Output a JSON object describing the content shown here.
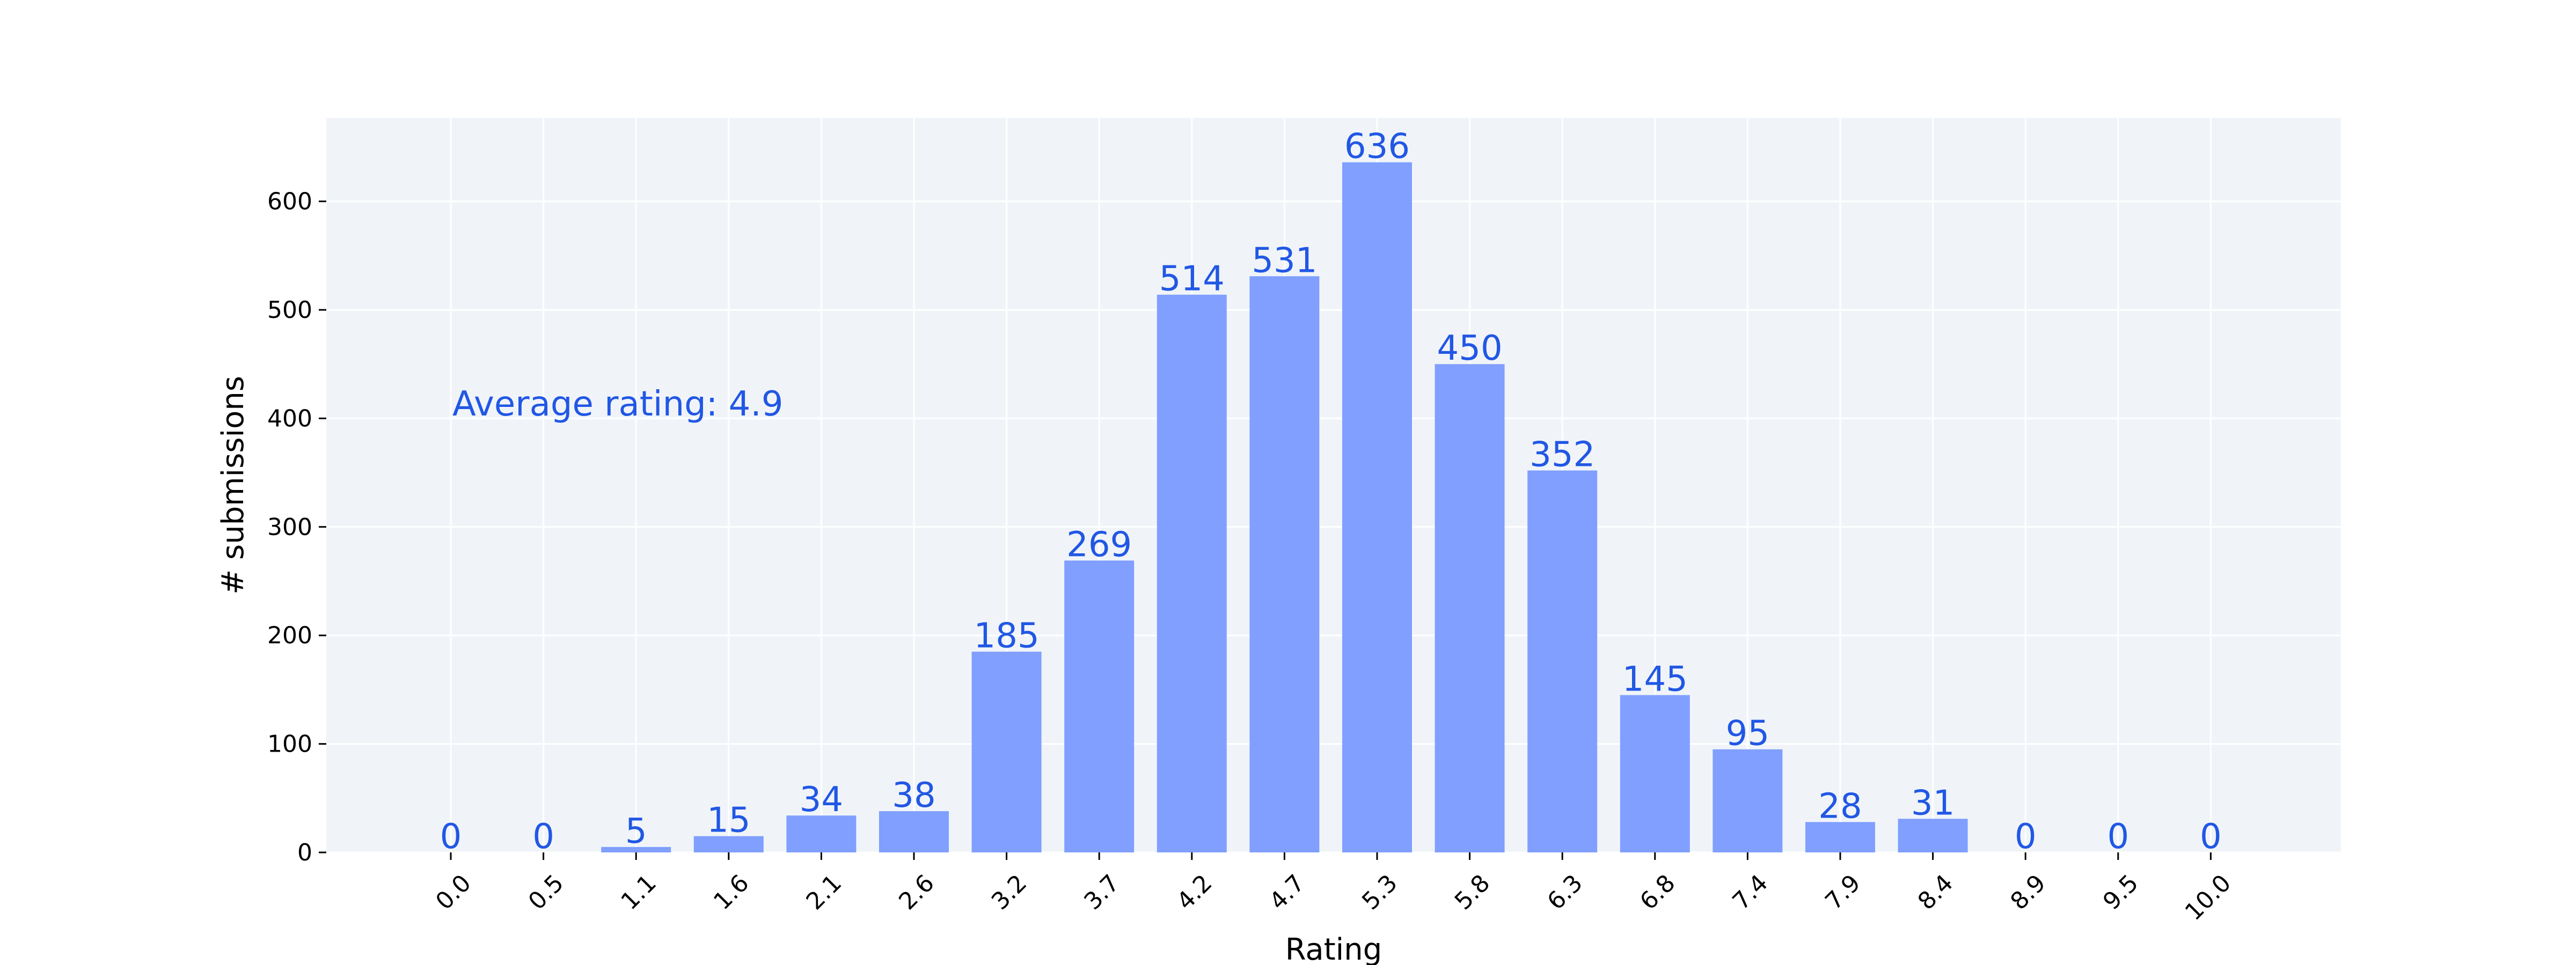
{
  "chart_data": {
    "type": "bar",
    "title": "",
    "xlabel": "Rating",
    "ylabel": "# submissions",
    "categories": [
      "0.0",
      "0.5",
      "1.1",
      "1.6",
      "2.1",
      "2.6",
      "3.2",
      "3.7",
      "4.2",
      "4.7",
      "5.3",
      "5.8",
      "6.3",
      "6.8",
      "7.4",
      "7.9",
      "8.4",
      "8.9",
      "9.5",
      "10.0"
    ],
    "values": [
      0,
      0,
      5,
      15,
      34,
      38,
      185,
      269,
      514,
      531,
      636,
      450,
      352,
      145,
      95,
      28,
      31,
      0,
      0,
      0
    ],
    "ylim": [
      0,
      680
    ],
    "yticks": [
      0,
      100,
      200,
      300,
      400,
      500,
      600
    ],
    "grid": true,
    "annotation": "Average rating: 4.9",
    "colors": {
      "bar": "#809fff",
      "label": "#2157e4",
      "plot_bg": "#f0f4f9",
      "grid": "#ffffff"
    }
  }
}
